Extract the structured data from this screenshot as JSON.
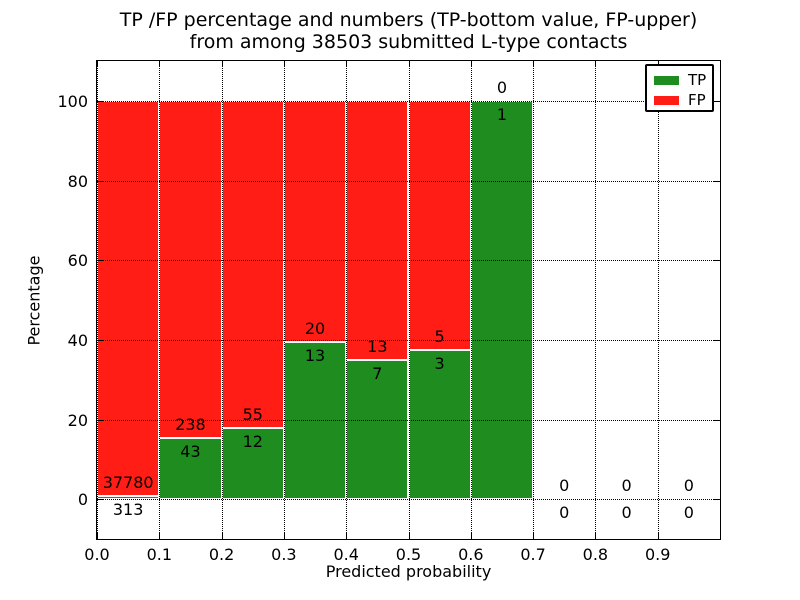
{
  "figure": {
    "title_line1": "TP /FP percentage and numbers (TP-bottom value, FP-upper)",
    "title_line2": "from among 38503 submitted L-type contacts"
  },
  "axes": {
    "x_label": "Predicted probability",
    "y_label": "Percentage",
    "x_tick_labels": [
      "0.0",
      "0.1",
      "0.2",
      "0.3",
      "0.4",
      "0.5",
      "0.6",
      "0.7",
      "0.8",
      "0.9"
    ],
    "y_tick_labels": [
      "0",
      "20",
      "40",
      "60",
      "80",
      "100"
    ],
    "xlim": [
      0.0,
      1.0
    ],
    "ylim": [
      -10,
      110
    ],
    "grid_style": "dotted"
  },
  "legend": {
    "position": "upper right",
    "items": [
      {
        "label": "TP",
        "color": "#1e8c1e"
      },
      {
        "label": "FP",
        "color": "#ff1d15"
      }
    ]
  },
  "chart_data": {
    "type": "bar",
    "stacked": true,
    "title": "TP /FP percentage and numbers (TP-bottom value, FP-upper) from among 38503 submitted L-type contacts",
    "xlabel": "Predicted probability",
    "ylabel": "Percentage",
    "total_contacts": 38503,
    "x_bin_width": 0.1,
    "colors": {
      "tp": "#1e8c1e",
      "fp": "#ff1d15",
      "bar_edge": "#ffffff"
    },
    "bins": [
      {
        "range": [
          0.0,
          0.1
        ],
        "tp": 313,
        "fp": 37780,
        "tp_pct": 0.82,
        "fp_pct": 99.18
      },
      {
        "range": [
          0.1,
          0.2
        ],
        "tp": 43,
        "fp": 238,
        "tp_pct": 15.3,
        "fp_pct": 84.7
      },
      {
        "range": [
          0.2,
          0.3
        ],
        "tp": 12,
        "fp": 55,
        "tp_pct": 17.91,
        "fp_pct": 82.09
      },
      {
        "range": [
          0.3,
          0.4
        ],
        "tp": 13,
        "fp": 20,
        "tp_pct": 39.39,
        "fp_pct": 60.61
      },
      {
        "range": [
          0.4,
          0.5
        ],
        "tp": 7,
        "fp": 13,
        "tp_pct": 35.0,
        "fp_pct": 65.0
      },
      {
        "range": [
          0.5,
          0.6
        ],
        "tp": 3,
        "fp": 5,
        "tp_pct": 37.5,
        "fp_pct": 62.5
      },
      {
        "range": [
          0.6,
          0.7
        ],
        "tp": 1,
        "fp": 0,
        "tp_pct": 100.0,
        "fp_pct": 0.0
      },
      {
        "range": [
          0.7,
          0.8
        ],
        "tp": 0,
        "fp": 0,
        "tp_pct": null,
        "fp_pct": null
      },
      {
        "range": [
          0.8,
          0.9
        ],
        "tp": 0,
        "fp": 0,
        "tp_pct": null,
        "fp_pct": null
      },
      {
        "range": [
          0.9,
          1.0
        ],
        "tp": 0,
        "fp": 0,
        "tp_pct": null,
        "fp_pct": null
      }
    ]
  }
}
